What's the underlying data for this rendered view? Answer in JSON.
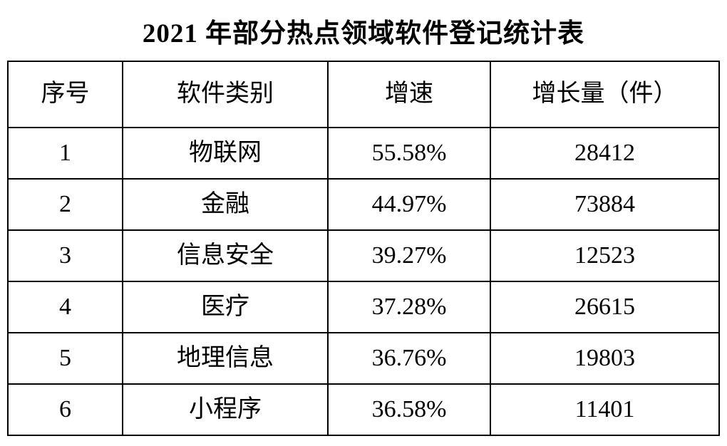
{
  "title": "2021 年部分热点领域软件登记统计表",
  "table": {
    "headers": [
      "序号",
      "软件类别",
      "增速",
      "增长量（件）"
    ],
    "rows": [
      [
        "1",
        "物联网",
        "55.58%",
        "28412"
      ],
      [
        "2",
        "金融",
        "44.97%",
        "73884"
      ],
      [
        "3",
        "信息安全",
        "39.27%",
        "12523"
      ],
      [
        "4",
        "医疗",
        "37.28%",
        "26615"
      ],
      [
        "5",
        "地理信息",
        "36.76%",
        "19803"
      ],
      [
        "6",
        "小程序",
        "36.58%",
        "11401"
      ]
    ]
  },
  "colors": {
    "border": "#000000",
    "text": "#000000",
    "background": "#ffffff"
  }
}
